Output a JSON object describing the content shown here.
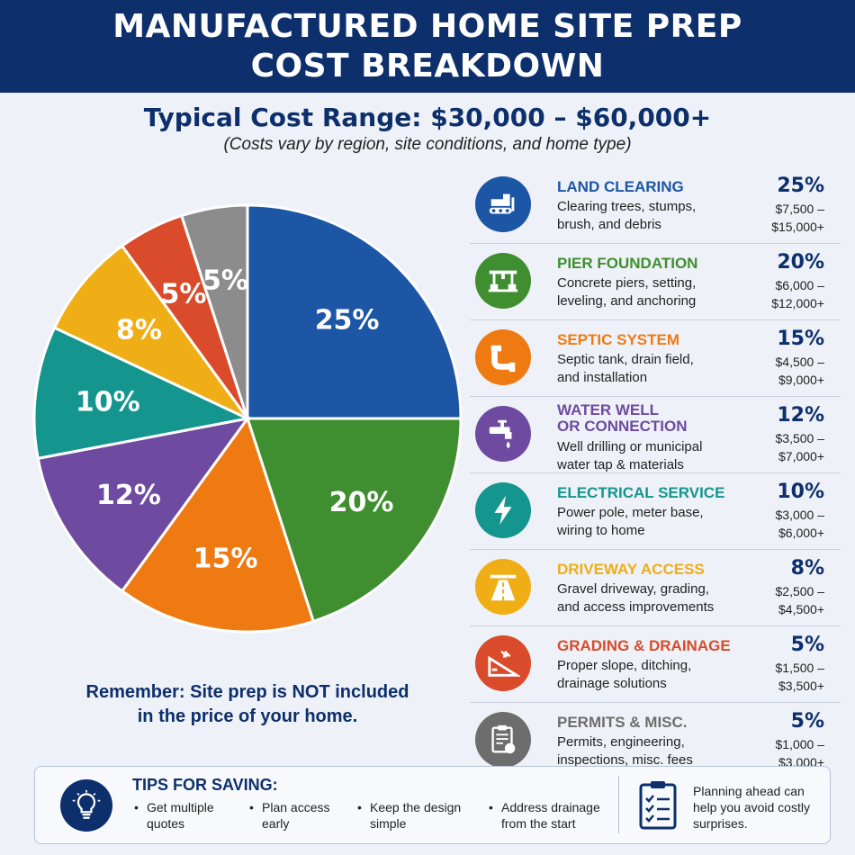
{
  "header": {
    "line1": "MANUFACTURED HOME SITE PREP",
    "line2": "COST BREAKDOWN"
  },
  "subtitle": "Typical Cost Range: $30,000 – $60,000+",
  "note": "(Costs vary by region, site conditions, and home type)",
  "remember": {
    "line1": "Remember: Site prep is NOT included",
    "line2": "in the price of your home."
  },
  "chart_data": {
    "type": "pie",
    "start_angle_deg": 0,
    "direction": "clockwise",
    "slices": [
      {
        "label": "25%",
        "value": 25,
        "color": "#1d56a5"
      },
      {
        "label": "20%",
        "value": 20,
        "color": "#3f8f31"
      },
      {
        "label": "15%",
        "value": 15,
        "color": "#ef7a12"
      },
      {
        "label": "12%",
        "value": 12,
        "color": "#6e4ba0"
      },
      {
        "label": "10%",
        "value": 10,
        "color": "#14968f"
      },
      {
        "label": "8%",
        "value": 8,
        "color": "#efae16"
      },
      {
        "label": "5%",
        "value": 5,
        "color": "#d94b2b"
      },
      {
        "label": "5%",
        "value": 5,
        "color": "#8c8c8c"
      }
    ]
  },
  "items": [
    {
      "title": "LAND CLEARING",
      "desc1": "Clearing trees, stumps,",
      "desc2": "brush, and debris",
      "pct": "25%",
      "range1": "$7,500 –",
      "range2": "$15,000+",
      "color": "#1d56a5",
      "icon": "bulldozer-icon"
    },
    {
      "title": "PIER FOUNDATION",
      "desc1": "Concrete piers, setting,",
      "desc2": "leveling, and anchoring",
      "pct": "20%",
      "range1": "$6,000 –",
      "range2": "$12,000+",
      "color": "#3f8f31",
      "icon": "foundation-icon"
    },
    {
      "title": "SEPTIC SYSTEM",
      "desc1": "Septic tank, drain field,",
      "desc2": "and installation",
      "pct": "15%",
      "range1": "$4,500 –",
      "range2": "$9,000+",
      "color": "#ef7a12",
      "icon": "pipe-icon"
    },
    {
      "title": "WATER WELL",
      "title2": "OR CONNECTION",
      "desc1": "Well drilling or municipal",
      "desc2": "water tap & materials",
      "pct": "12%",
      "range1": "$3,500 –",
      "range2": "$7,000+",
      "color": "#6e4ba0",
      "icon": "faucet-icon"
    },
    {
      "title": "ELECTRICAL SERVICE",
      "desc1": "Power pole, meter base,",
      "desc2": "wiring to home",
      "pct": "10%",
      "range1": "$3,000 –",
      "range2": "$6,000+",
      "color": "#14968f",
      "icon": "lightning-icon"
    },
    {
      "title": "DRIVEWAY ACCESS",
      "desc1": "Gravel driveway, grading,",
      "desc2": "and access improvements",
      "pct": "8%",
      "range1": "$2,500 –",
      "range2": "$4,500+",
      "color": "#efae16",
      "icon": "road-icon"
    },
    {
      "title": "GRADING & DRAINAGE",
      "desc1": "Proper slope, ditching,",
      "desc2": "drainage solutions",
      "pct": "5%",
      "range1": "$1,500 –",
      "range2": "$3,500+",
      "color": "#d94b2b",
      "icon": "slope-icon"
    },
    {
      "title": "PERMITS & MISC.",
      "desc1": "Permits, engineering,",
      "desc2": "inspections, misc. fees",
      "pct": "5%",
      "range1": "$1,000 –",
      "range2": "$3,000+",
      "color": "#6d6d6d",
      "icon": "document-icon"
    }
  ],
  "tips": {
    "title": "TIPS FOR SAVING:",
    "t1a": "Get multiple",
    "t1b": "quotes",
    "t2a": "Plan access",
    "t2b": "early",
    "t3a": "Keep the design",
    "t3b": "simple",
    "t4a": "Address drainage",
    "t4b": "from the start",
    "plan1": "Planning ahead can",
    "plan2": "help you avoid costly",
    "plan3": "surprises."
  }
}
